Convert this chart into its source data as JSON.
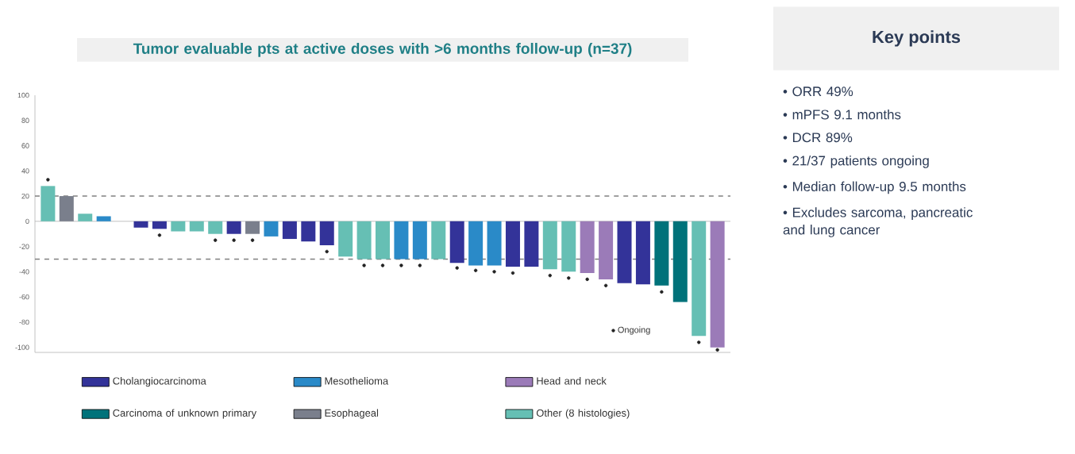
{
  "chart_data": [
    {
      "type": "bar",
      "title": "Tumor evaluable pts at active doses with >6 months follow-up (n=37)",
      "categories": [
        null,
        null,
        null,
        null,
        null,
        null,
        null,
        null,
        null,
        null,
        null,
        null,
        null,
        null,
        null,
        null,
        null,
        null,
        null,
        null,
        null,
        null,
        null,
        null,
        null,
        null,
        null,
        null,
        null,
        null,
        null,
        null,
        null,
        null,
        null,
        null,
        null
      ],
      "series": [
        {
          "name": "Cholangiocarcinoma",
          "color": "#333399",
          "values": [
            null,
            null,
            null,
            null,
            null,
            -5,
            -6,
            null,
            null,
            null,
            -10,
            null,
            null,
            -14,
            -16,
            -19,
            null,
            null,
            null,
            null,
            null,
            null,
            -33,
            null,
            null,
            -36,
            -36,
            null,
            null,
            null,
            null,
            -49,
            -50,
            null,
            null,
            null,
            null
          ]
        },
        {
          "name": "Mesothelioma",
          "color": "#2a8ac8",
          "values": [
            null,
            null,
            null,
            4,
            null,
            null,
            null,
            null,
            null,
            null,
            null,
            null,
            -12,
            null,
            null,
            null,
            null,
            null,
            null,
            -30,
            -30,
            null,
            null,
            -35,
            -35,
            null,
            null,
            null,
            null,
            null,
            null,
            null,
            null,
            null,
            null,
            null,
            null
          ]
        },
        {
          "name": "Head and neck",
          "color": "#9b7bb8",
          "values": [
            null,
            null,
            null,
            null,
            null,
            null,
            null,
            null,
            null,
            null,
            null,
            null,
            null,
            null,
            null,
            null,
            null,
            null,
            null,
            null,
            null,
            null,
            null,
            null,
            null,
            null,
            null,
            null,
            null,
            -41,
            -46,
            null,
            null,
            null,
            null,
            null,
            -100
          ]
        },
        {
          "name": "Carcinoma of unknown primary",
          "color": "#00727a",
          "values": [
            null,
            null,
            null,
            null,
            null,
            null,
            null,
            null,
            null,
            null,
            null,
            null,
            null,
            null,
            null,
            null,
            null,
            null,
            null,
            null,
            null,
            null,
            null,
            null,
            null,
            null,
            null,
            null,
            null,
            null,
            null,
            null,
            null,
            -51,
            -64,
            null,
            null
          ]
        },
        {
          "name": "Esophageal",
          "color": "#7a7f8c",
          "values": [
            null,
            20,
            null,
            null,
            null,
            null,
            null,
            null,
            null,
            null,
            null,
            -10,
            null,
            null,
            null,
            null,
            null,
            null,
            null,
            null,
            null,
            null,
            null,
            null,
            null,
            null,
            null,
            null,
            null,
            null,
            null,
            null,
            null,
            null,
            null,
            null,
            null
          ]
        },
        {
          "name": "Other (8 histologies)",
          "color": "#66bfb4",
          "values": [
            28,
            null,
            6,
            null,
            0,
            null,
            null,
            -8,
            -8,
            -10,
            null,
            null,
            null,
            null,
            null,
            null,
            -28,
            -30,
            -30,
            null,
            null,
            -30,
            null,
            null,
            null,
            null,
            null,
            -38,
            -40,
            null,
            null,
            null,
            null,
            null,
            null,
            -91,
            null
          ]
        },
        {
          "type": "scatter",
          "name": "Ongoing",
          "color": "#222222",
          "marker": "circle",
          "values": [
            33,
            null,
            null,
            null,
            null,
            null,
            -11,
            null,
            null,
            -15,
            -15,
            -15,
            null,
            null,
            null,
            -24,
            null,
            -35,
            -35,
            -35,
            -35,
            null,
            -37,
            -39,
            -40,
            -41,
            null,
            -43,
            -45,
            -46,
            -51,
            null,
            null,
            -56,
            null,
            -96,
            -102
          ]
        }
      ],
      "ylim": [
        -104,
        100
      ],
      "yticks": [
        -100,
        -80,
        -60,
        -40,
        -20,
        0,
        20,
        40,
        60,
        80,
        100
      ],
      "ref_lines": [
        {
          "axis": "y",
          "value": 20,
          "color": "#808080",
          "line_style": "dashed"
        },
        {
          "axis": "y",
          "value": -30,
          "color": "#808080",
          "line_style": "dashed"
        }
      ],
      "legend": "bottom"
    },
    {
      "type": "other",
      "title": "Key points",
      "annotations": [
        "• ORR 49%",
        "• mPFS 9.1 months",
        "• DCR 89%",
        "• 21/37 patients ongoing",
        "• Median follow-up 9.5 months",
        "• Excludes sarcoma, pancreatic and lung cancer"
      ]
    }
  ]
}
